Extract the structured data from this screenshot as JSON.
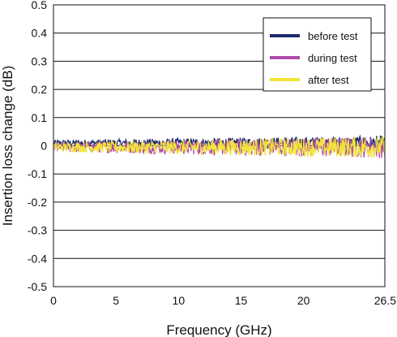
{
  "chart_data": {
    "type": "line",
    "title": "",
    "xlabel": "Frequency (GHz)",
    "ylabel": "Insertion loss change (dB)",
    "xlim": [
      0,
      26.5
    ],
    "ylim": [
      -0.5,
      0.5
    ],
    "x_ticks": [
      "0",
      "5",
      "10",
      "15",
      "20",
      "26.5"
    ],
    "x_tick_values": [
      0,
      5,
      10,
      15,
      20,
      26.5
    ],
    "y_ticks": [
      "0.5",
      "0.4",
      "0.3",
      "0.2",
      "0.1",
      "0",
      "-0.1",
      "-0.2",
      "-0.3",
      "-0.4",
      "-0.5"
    ],
    "y_tick_values": [
      0.5,
      0.4,
      0.3,
      0.2,
      0.1,
      0,
      -0.1,
      -0.2,
      -0.3,
      -0.4,
      -0.5
    ],
    "grid": "horizontal",
    "legend_position": "top-right",
    "series": [
      {
        "name": "before test",
        "color": "#1f2a6b",
        "center": 0.01,
        "noise": 0.018,
        "x_range": [
          0,
          26.5
        ]
      },
      {
        "name": "during test",
        "color": "#b04ba8",
        "center": -0.005,
        "noise": 0.028,
        "x_range": [
          0,
          26.5
        ]
      },
      {
        "name": "after test",
        "color": "#f2e43a",
        "center": -0.005,
        "noise": 0.028,
        "x_range": [
          0,
          26.5
        ]
      }
    ]
  }
}
